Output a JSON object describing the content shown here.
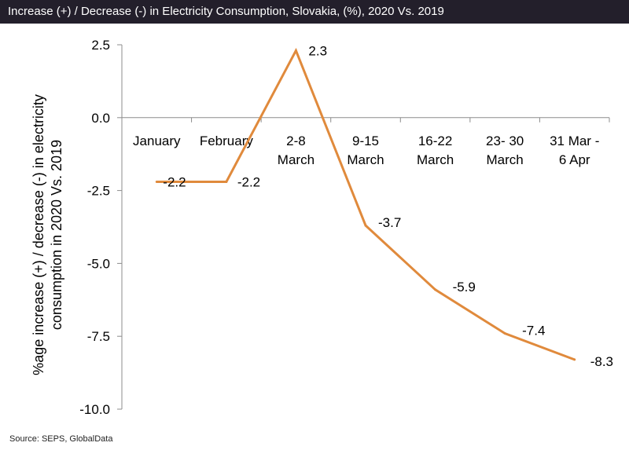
{
  "title": "Increase (+) / Decrease (-) in Electricity Consumption, Slovakia, (%), 2020 Vs. 2019",
  "source": "Source: SEPS, GlobalData",
  "colors": {
    "line": "#e08a3c",
    "axis": "#8c8c8c",
    "title_bg": "#231f2b"
  },
  "chart_data": {
    "type": "line",
    "title": "Increase (+) / Decrease (-) in Electricity Consumption, Slovakia, (%), 2020 Vs. 2019",
    "ylabel_lines": [
      "%age increase (+) / decrease (-) in electricity",
      "consumption in 2020 Vs. 2019"
    ],
    "xlabel": "",
    "categories": [
      [
        "January"
      ],
      [
        "February"
      ],
      [
        "2-8",
        "March"
      ],
      [
        "9-15",
        "March"
      ],
      [
        "16-22",
        "March"
      ],
      [
        "23- 30",
        "March"
      ],
      [
        "31 Mar -",
        "6 Apr"
      ]
    ],
    "values": [
      -2.2,
      -2.2,
      2.3,
      -3.7,
      -5.9,
      -7.4,
      -8.3
    ],
    "data_labels": [
      "-2.2",
      "-2.2",
      "2.3",
      "-3.7",
      "-5.9",
      "-7.4",
      "-8.3"
    ],
    "ylim": [
      -10.0,
      2.5
    ],
    "yticks": [
      2.5,
      0.0,
      -2.5,
      -5.0,
      -7.5,
      -10.0
    ],
    "ytick_labels": [
      "2.5",
      "0.0",
      "-2.5",
      "-5.0",
      "-7.5",
      "-10.0"
    ],
    "grid": false,
    "legend": "none"
  }
}
